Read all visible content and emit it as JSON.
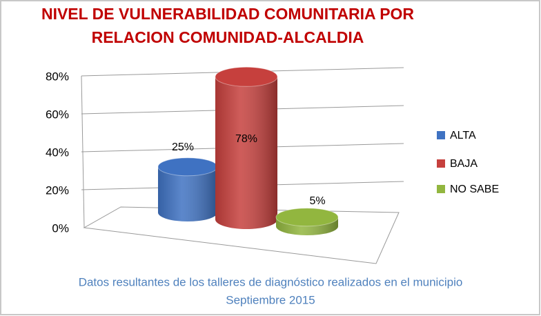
{
  "chart_data": {
    "type": "bar3d",
    "title": [
      "NIVEL DE VULNERABILIDAD COMUNITARIA POR",
      "RELACION COMUNIDAD-ALCALDIA"
    ],
    "caption": [
      "Datos resultantes de los talleres de diagnóstico realizados en el  municipio",
      "Septiembre  2015"
    ],
    "categories": [
      "ALTA",
      "BAJA",
      "NO SABE"
    ],
    "values": [
      25,
      78,
      5
    ],
    "value_labels": [
      "25%",
      "78%",
      "5%"
    ],
    "colors": [
      "#3f72c2",
      "#c6403d",
      "#92b63f"
    ],
    "ylim": [
      0,
      80
    ],
    "yticks": [
      {
        "value": 0,
        "label": "0%"
      },
      {
        "value": 20,
        "label": "20%"
      },
      {
        "value": 40,
        "label": "40%"
      },
      {
        "value": 60,
        "label": "60%"
      },
      {
        "value": 80,
        "label": "80%"
      }
    ],
    "grid": true
  }
}
